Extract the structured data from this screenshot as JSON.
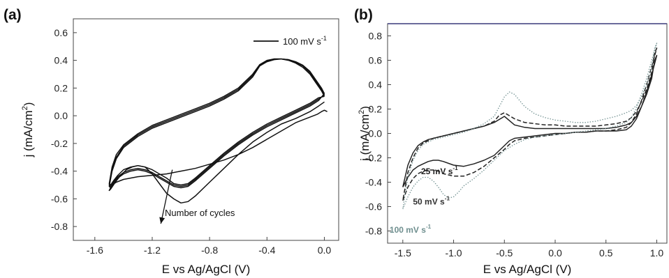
{
  "chart_data": [
    {
      "panel_label": "(a)",
      "type": "line",
      "xlabel": "E vs Ag/AgCl (V)",
      "ylabel": "j (mA/cm2)",
      "ylabel_base": "j (mA/cm",
      "ylabel_sup": "2",
      "ylabel_close": ")",
      "xlim": [
        -1.75,
        0.1
      ],
      "ylim": [
        -0.9,
        0.7
      ],
      "xticks": [
        -1.6,
        -1.2,
        -0.8,
        -0.4,
        0.0
      ],
      "xtick_labels": [
        "-1.6",
        "-1.2",
        "-0.8",
        "-0.4",
        "0.0"
      ],
      "yticks": [
        -0.8,
        -0.6,
        -0.4,
        -0.2,
        0.0,
        0.2,
        0.4,
        0.6
      ],
      "ytick_labels": [
        "-0.8",
        "-0.6",
        "-0.4",
        "-0.2",
        "0.0",
        "0.2",
        "0.4",
        "0.6"
      ],
      "grid": false,
      "legend": {
        "placement": "top-right",
        "entries": [
          {
            "label": "100 mV s-1",
            "text": "100 mV s",
            "sup": "-1",
            "style": "solid",
            "color": "#111111"
          }
        ]
      },
      "annotations": [
        {
          "text": "Number of cycles",
          "arrow_from": [
            -1.06,
            -0.39
          ],
          "arrow_to": [
            -1.14,
            -0.78
          ]
        }
      ],
      "series": [
        {
          "color": "#111111",
          "style": "solid",
          "x": [
            0.02,
            0.0,
            -0.02,
            -0.05,
            -0.1,
            -0.15,
            -0.2,
            -0.3,
            -0.4,
            -0.5,
            -0.6,
            -0.7,
            -0.8,
            -0.9,
            -1.0,
            -1.1,
            -1.2,
            -1.3,
            -1.4,
            -1.45,
            -1.48,
            -1.5,
            -1.49,
            -1.47,
            -1.45,
            -1.42,
            -1.38,
            -1.34,
            -1.3,
            -1.25,
            -1.2,
            -1.15,
            -1.1,
            -1.05,
            -1.0,
            -0.95,
            -0.9,
            -0.8,
            -0.7,
            -0.6,
            -0.5,
            -0.4,
            -0.3,
            -0.2,
            -0.1,
            -0.04,
            0.0
          ],
          "y": [
            0.03,
            0.04,
            0.03,
            0.01,
            -0.01,
            -0.03,
            -0.05,
            -0.11,
            -0.17,
            -0.23,
            -0.28,
            -0.32,
            -0.35,
            -0.38,
            -0.4,
            -0.42,
            -0.43,
            -0.44,
            -0.46,
            -0.48,
            -0.5,
            -0.54,
            -0.53,
            -0.5,
            -0.47,
            -0.43,
            -0.39,
            -0.37,
            -0.36,
            -0.37,
            -0.42,
            -0.49,
            -0.56,
            -0.6,
            -0.63,
            -0.62,
            -0.58,
            -0.48,
            -0.38,
            -0.28,
            -0.19,
            -0.12,
            -0.06,
            -0.02,
            0.03,
            0.07,
            0.1
          ]
        },
        {
          "color": "#111111",
          "style": "solid",
          "x": [
            0.0,
            -0.02,
            -0.06,
            -0.1,
            -0.15,
            -0.2,
            -0.25,
            -0.3,
            -0.35,
            -0.4,
            -0.45,
            -0.5,
            -0.6,
            -0.7,
            -0.8,
            -0.9,
            -1.0,
            -1.1,
            -1.2,
            -1.3,
            -1.4,
            -1.45,
            -1.48,
            -1.5,
            -1.49,
            -1.47,
            -1.44,
            -1.4,
            -1.35,
            -1.3,
            -1.25,
            -1.2,
            -1.15,
            -1.1,
            -1.05,
            -1.0,
            -0.95,
            -0.9,
            -0.8,
            -0.7,
            -0.6,
            -0.5,
            -0.4,
            -0.3,
            -0.2,
            -0.1,
            -0.04,
            0.0
          ],
          "y": [
            0.14,
            0.18,
            0.24,
            0.3,
            0.35,
            0.38,
            0.4,
            0.41,
            0.41,
            0.4,
            0.37,
            0.3,
            0.2,
            0.14,
            0.09,
            0.05,
            0.01,
            -0.03,
            -0.07,
            -0.13,
            -0.21,
            -0.28,
            -0.37,
            -0.49,
            -0.5,
            -0.47,
            -0.43,
            -0.39,
            -0.37,
            -0.36,
            -0.37,
            -0.39,
            -0.42,
            -0.45,
            -0.49,
            -0.5,
            -0.49,
            -0.45,
            -0.36,
            -0.27,
            -0.19,
            -0.12,
            -0.06,
            -0.01,
            0.04,
            0.09,
            0.13,
            0.14
          ]
        },
        {
          "color": "#111111",
          "style": "solid",
          "x": [
            0.0,
            -0.02,
            -0.06,
            -0.1,
            -0.15,
            -0.2,
            -0.25,
            -0.3,
            -0.35,
            -0.4,
            -0.45,
            -0.5,
            -0.6,
            -0.7,
            -0.8,
            -0.9,
            -1.0,
            -1.1,
            -1.2,
            -1.3,
            -1.4,
            -1.45,
            -1.48,
            -1.5,
            -1.49,
            -1.47,
            -1.44,
            -1.4,
            -1.35,
            -1.3,
            -1.25,
            -1.2,
            -1.15,
            -1.1,
            -1.05,
            -1.0,
            -0.95,
            -0.9,
            -0.8,
            -0.7,
            -0.6,
            -0.5,
            -0.4,
            -0.3,
            -0.2,
            -0.1,
            -0.04,
            0.0
          ],
          "y": [
            0.15,
            0.19,
            0.25,
            0.31,
            0.36,
            0.385,
            0.405,
            0.41,
            0.41,
            0.395,
            0.365,
            0.29,
            0.19,
            0.13,
            0.08,
            0.04,
            0.0,
            -0.04,
            -0.08,
            -0.14,
            -0.22,
            -0.3,
            -0.39,
            -0.5,
            -0.51,
            -0.48,
            -0.44,
            -0.41,
            -0.39,
            -0.38,
            -0.39,
            -0.41,
            -0.44,
            -0.47,
            -0.5,
            -0.51,
            -0.5,
            -0.46,
            -0.37,
            -0.28,
            -0.2,
            -0.13,
            -0.07,
            -0.02,
            0.03,
            0.08,
            0.12,
            0.15
          ]
        },
        {
          "color": "#111111",
          "style": "solid",
          "x": [
            0.0,
            -0.02,
            -0.06,
            -0.1,
            -0.15,
            -0.2,
            -0.25,
            -0.3,
            -0.35,
            -0.4,
            -0.45,
            -0.5,
            -0.6,
            -0.7,
            -0.8,
            -0.9,
            -1.0,
            -1.1,
            -1.2,
            -1.3,
            -1.4,
            -1.45,
            -1.48,
            -1.5,
            -1.49,
            -1.47,
            -1.44,
            -1.4,
            -1.35,
            -1.3,
            -1.25,
            -1.2,
            -1.15,
            -1.1,
            -1.05,
            -1.0,
            -0.95,
            -0.9,
            -0.8,
            -0.7,
            -0.6,
            -0.5,
            -0.4,
            -0.3,
            -0.2,
            -0.1,
            -0.04,
            0.0
          ],
          "y": [
            0.16,
            0.2,
            0.26,
            0.32,
            0.365,
            0.39,
            0.405,
            0.41,
            0.405,
            0.39,
            0.36,
            0.28,
            0.18,
            0.12,
            0.07,
            0.03,
            -0.01,
            -0.05,
            -0.09,
            -0.15,
            -0.23,
            -0.31,
            -0.4,
            -0.51,
            -0.52,
            -0.49,
            -0.45,
            -0.42,
            -0.4,
            -0.39,
            -0.4,
            -0.42,
            -0.45,
            -0.48,
            -0.51,
            -0.52,
            -0.51,
            -0.47,
            -0.38,
            -0.29,
            -0.21,
            -0.14,
            -0.08,
            -0.03,
            0.02,
            0.07,
            0.11,
            0.16
          ]
        }
      ]
    },
    {
      "panel_label": "(b)",
      "type": "line",
      "xlabel": "E vs Ag/AgCl (V)",
      "ylabel": "j (mA/cm2)",
      "ylabel_base": "j (mA/cm",
      "ylabel_sup": "2",
      "ylabel_close": ")",
      "xlim": [
        -1.65,
        1.1
      ],
      "ylim": [
        -0.9,
        0.9
      ],
      "xticks": [
        -1.5,
        -1.0,
        -0.5,
        0.0,
        0.5,
        1.0
      ],
      "xtick_labels": [
        "-1.5",
        "-1.0",
        "-0.5",
        "0.0",
        "0.5",
        "1.0"
      ],
      "yticks": [
        -0.8,
        -0.6,
        -0.4,
        -0.2,
        0.0,
        0.2,
        0.4,
        0.6,
        0.8
      ],
      "ytick_labels": [
        "-0.8",
        "-0.6",
        "-0.4",
        "-0.2",
        "0.0",
        "0.2",
        "0.4",
        "0.6",
        "0.8"
      ],
      "grid": false,
      "top_axis_color": "#3a3a7a",
      "series_labels": [
        {
          "text": "25 mV s",
          "sup": "-1",
          "color": "#222222",
          "x": -1.32,
          "y": -0.31
        },
        {
          "text": "50 mV s",
          "sup": "-1",
          "color": "#333333",
          "x": -1.4,
          "y": -0.56
        },
        {
          "text": "100 mV s",
          "sup": "-1",
          "color": "#6f8f8f",
          "x": -1.63,
          "y": -0.79
        }
      ],
      "series": [
        {
          "rate": "25 mV s-1",
          "color": "#222222",
          "style": "solid",
          "x": [
            -1.5,
            -1.45,
            -1.4,
            -1.35,
            -1.3,
            -1.25,
            -1.2,
            -1.15,
            -1.1,
            -1.0,
            -0.9,
            -0.8,
            -0.7,
            -0.6,
            -0.55,
            -0.5,
            -0.45,
            -0.4,
            -0.3,
            -0.2,
            -0.1,
            0.0,
            0.1,
            0.2,
            0.3,
            0.4,
            0.5,
            0.6,
            0.7,
            0.75,
            0.8,
            0.85,
            0.9,
            0.95,
            1.0,
            0.98,
            0.95,
            0.9,
            0.85,
            0.8,
            0.75,
            0.7,
            0.6,
            0.5,
            0.4,
            0.3,
            0.2,
            0.1,
            0.0,
            -0.1,
            -0.2,
            -0.3,
            -0.4,
            -0.5,
            -0.6,
            -0.7,
            -0.8,
            -0.9,
            -1.0,
            -1.1,
            -1.2,
            -1.25,
            -1.3,
            -1.35,
            -1.4,
            -1.45,
            -1.5
          ],
          "y": [
            -0.44,
            -0.36,
            -0.3,
            -0.27,
            -0.25,
            -0.23,
            -0.22,
            -0.22,
            -0.23,
            -0.26,
            -0.27,
            -0.25,
            -0.22,
            -0.18,
            -0.14,
            -0.1,
            -0.06,
            -0.04,
            -0.03,
            -0.02,
            -0.01,
            0.0,
            0.0,
            0.01,
            0.01,
            0.02,
            0.02,
            0.02,
            0.03,
            0.06,
            0.12,
            0.22,
            0.34,
            0.48,
            0.64,
            0.6,
            0.45,
            0.32,
            0.22,
            0.14,
            0.09,
            0.07,
            0.05,
            0.04,
            0.04,
            0.04,
            0.04,
            0.04,
            0.04,
            0.04,
            0.04,
            0.05,
            0.07,
            0.14,
            0.09,
            0.06,
            0.04,
            0.02,
            0.0,
            -0.02,
            -0.04,
            -0.05,
            -0.07,
            -0.1,
            -0.16,
            -0.26,
            -0.44
          ]
        },
        {
          "rate": "50 mV s-1",
          "color": "#222222",
          "style": "dashed",
          "x": [
            -1.5,
            -1.45,
            -1.4,
            -1.35,
            -1.3,
            -1.25,
            -1.2,
            -1.15,
            -1.1,
            -1.0,
            -0.9,
            -0.8,
            -0.7,
            -0.6,
            -0.5,
            -0.45,
            -0.4,
            -0.3,
            -0.2,
            -0.1,
            0.0,
            0.1,
            0.2,
            0.3,
            0.4,
            0.5,
            0.6,
            0.7,
            0.75,
            0.8,
            0.85,
            0.9,
            0.95,
            1.0,
            0.98,
            0.95,
            0.9,
            0.85,
            0.8,
            0.75,
            0.7,
            0.6,
            0.5,
            0.4,
            0.3,
            0.2,
            0.1,
            0.0,
            -0.1,
            -0.2,
            -0.3,
            -0.4,
            -0.5,
            -0.55,
            -0.6,
            -0.7,
            -0.8,
            -0.9,
            -1.0,
            -1.1,
            -1.2,
            -1.25,
            -1.3,
            -1.35,
            -1.4,
            -1.45,
            -1.5
          ],
          "y": [
            -0.55,
            -0.44,
            -0.37,
            -0.33,
            -0.31,
            -0.3,
            -0.3,
            -0.31,
            -0.33,
            -0.35,
            -0.35,
            -0.32,
            -0.27,
            -0.2,
            -0.13,
            -0.09,
            -0.06,
            -0.04,
            -0.03,
            -0.02,
            -0.01,
            0.0,
            0.01,
            0.01,
            0.02,
            0.02,
            0.03,
            0.05,
            0.09,
            0.16,
            0.27,
            0.4,
            0.55,
            0.7,
            0.66,
            0.5,
            0.36,
            0.26,
            0.18,
            0.13,
            0.1,
            0.08,
            0.07,
            0.06,
            0.06,
            0.06,
            0.06,
            0.07,
            0.07,
            0.08,
            0.09,
            0.12,
            0.17,
            0.15,
            0.1,
            0.06,
            0.04,
            0.02,
            0.0,
            -0.02,
            -0.04,
            -0.06,
            -0.08,
            -0.12,
            -0.2,
            -0.32,
            -0.55
          ]
        },
        {
          "rate": "100 mV s-1",
          "color": "#6f8f8f",
          "style": "dotted",
          "x": [
            -1.5,
            -1.45,
            -1.4,
            -1.35,
            -1.3,
            -1.25,
            -1.2,
            -1.15,
            -1.1,
            -1.05,
            -1.0,
            -0.95,
            -0.9,
            -0.8,
            -0.7,
            -0.6,
            -0.5,
            -0.4,
            -0.3,
            -0.2,
            -0.1,
            0.0,
            0.1,
            0.2,
            0.3,
            0.4,
            0.5,
            0.6,
            0.7,
            0.75,
            0.8,
            0.85,
            0.9,
            0.95,
            1.0,
            0.98,
            0.95,
            0.9,
            0.85,
            0.8,
            0.75,
            0.7,
            0.6,
            0.5,
            0.4,
            0.3,
            0.2,
            0.1,
            0.0,
            -0.1,
            -0.2,
            -0.3,
            -0.35,
            -0.4,
            -0.45,
            -0.5,
            -0.55,
            -0.6,
            -0.7,
            -0.8,
            -0.9,
            -1.0,
            -1.1,
            -1.2,
            -1.25,
            -1.3,
            -1.35,
            -1.4,
            -1.45,
            -1.5
          ],
          "y": [
            -0.62,
            -0.52,
            -0.44,
            -0.39,
            -0.36,
            -0.36,
            -0.39,
            -0.44,
            -0.5,
            -0.53,
            -0.52,
            -0.48,
            -0.43,
            -0.37,
            -0.3,
            -0.22,
            -0.14,
            -0.09,
            -0.05,
            -0.03,
            -0.02,
            -0.01,
            0.0,
            0.01,
            0.02,
            0.03,
            0.04,
            0.06,
            0.09,
            0.13,
            0.21,
            0.32,
            0.45,
            0.6,
            0.74,
            0.7,
            0.54,
            0.4,
            0.3,
            0.23,
            0.19,
            0.17,
            0.14,
            0.12,
            0.1,
            0.09,
            0.09,
            0.1,
            0.11,
            0.13,
            0.16,
            0.22,
            0.27,
            0.32,
            0.34,
            0.3,
            0.22,
            0.14,
            0.08,
            0.04,
            0.01,
            -0.01,
            -0.03,
            -0.05,
            -0.07,
            -0.09,
            -0.14,
            -0.22,
            -0.36,
            -0.62
          ]
        }
      ]
    }
  ]
}
